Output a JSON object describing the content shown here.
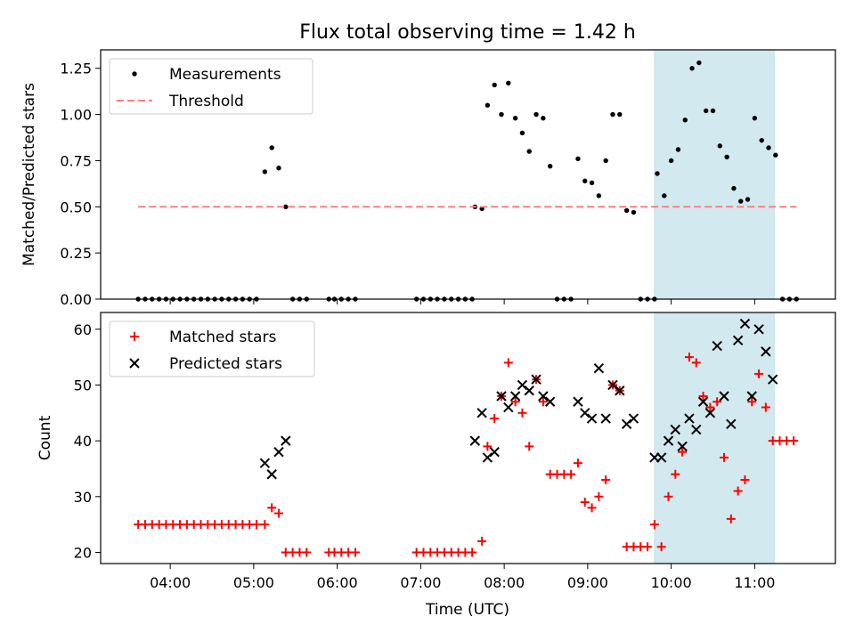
{
  "figure": {
    "title": "Flux total observing time = 1.42 h",
    "xlabel": "Time (UTC)",
    "x_ticks": [
      "04:00",
      "05:00",
      "06:00",
      "07:00",
      "08:00",
      "09:00",
      "10:00",
      "11:00"
    ],
    "highlight_span": {
      "start": "09:48",
      "end": "11:14",
      "color": "#d3e9f0"
    }
  },
  "chart_data": [
    {
      "type": "scatter",
      "ylabel": "Matched/Predicted stars",
      "ylim": [
        0,
        1.35
      ],
      "y_ticks": [
        "0.00",
        "0.25",
        "0.50",
        "0.75",
        "1.00",
        "1.25"
      ],
      "legend_position": "top-left",
      "series": [
        {
          "name": "Measurements",
          "marker": "dot",
          "color": "#000000",
          "points": [
            [
              "03:37",
              0
            ],
            [
              "03:42",
              0
            ],
            [
              "03:47",
              0
            ],
            [
              "03:52",
              0
            ],
            [
              "03:57",
              0
            ],
            [
              "04:02",
              0
            ],
            [
              "04:07",
              0
            ],
            [
              "04:12",
              0
            ],
            [
              "04:17",
              0
            ],
            [
              "04:22",
              0
            ],
            [
              "04:27",
              0
            ],
            [
              "04:32",
              0
            ],
            [
              "04:37",
              0
            ],
            [
              "04:42",
              0
            ],
            [
              "04:47",
              0
            ],
            [
              "04:52",
              0
            ],
            [
              "04:57",
              0
            ],
            [
              "05:02",
              0
            ],
            [
              "05:08",
              0.69
            ],
            [
              "05:13",
              0.82
            ],
            [
              "05:18",
              0.71
            ],
            [
              "05:23",
              0.5
            ],
            [
              "05:28",
              0
            ],
            [
              "05:33",
              0
            ],
            [
              "05:38",
              0
            ],
            [
              "05:54",
              0
            ],
            [
              "05:58",
              0
            ],
            [
              "06:03",
              0
            ],
            [
              "06:08",
              0
            ],
            [
              "06:13",
              0
            ],
            [
              "06:57",
              0
            ],
            [
              "07:02",
              0
            ],
            [
              "07:07",
              0
            ],
            [
              "07:12",
              0
            ],
            [
              "07:17",
              0
            ],
            [
              "07:22",
              0
            ],
            [
              "07:27",
              0
            ],
            [
              "07:32",
              0
            ],
            [
              "07:37",
              0
            ],
            [
              "07:39",
              0.5
            ],
            [
              "07:44",
              0.49
            ],
            [
              "07:48",
              1.05
            ],
            [
              "07:53",
              1.16
            ],
            [
              "07:58",
              1.0
            ],
            [
              "08:03",
              1.17
            ],
            [
              "08:08",
              0.98
            ],
            [
              "08:13",
              0.9
            ],
            [
              "08:18",
              0.8
            ],
            [
              "08:23",
              1.0
            ],
            [
              "08:28",
              0.98
            ],
            [
              "08:33",
              0.72
            ],
            [
              "08:38",
              0
            ],
            [
              "08:43",
              0
            ],
            [
              "08:48",
              0
            ],
            [
              "08:53",
              0.76
            ],
            [
              "08:58",
              0.64
            ],
            [
              "09:03",
              0.63
            ],
            [
              "09:08",
              0.56
            ],
            [
              "09:13",
              0.75
            ],
            [
              "09:18",
              1.0
            ],
            [
              "09:23",
              1.0
            ],
            [
              "09:28",
              0.48
            ],
            [
              "09:33",
              0.47
            ],
            [
              "09:38",
              0
            ],
            [
              "09:43",
              0
            ],
            [
              "09:48",
              0
            ],
            [
              "09:50",
              0.68
            ],
            [
              "09:55",
              0.56
            ],
            [
              "10:00",
              0.75
            ],
            [
              "10:05",
              0.81
            ],
            [
              "10:10",
              0.97
            ],
            [
              "10:15",
              1.25
            ],
            [
              "10:20",
              1.28
            ],
            [
              "10:25",
              1.02
            ],
            [
              "10:30",
              1.02
            ],
            [
              "10:35",
              0.83
            ],
            [
              "10:40",
              0.77
            ],
            [
              "10:45",
              0.6
            ],
            [
              "10:50",
              0.53
            ],
            [
              "10:55",
              0.54
            ],
            [
              "11:00",
              0.98
            ],
            [
              "11:05",
              0.86
            ],
            [
              "11:10",
              0.82
            ],
            [
              "11:15",
              0.78
            ],
            [
              "11:20",
              0
            ],
            [
              "11:25",
              0
            ],
            [
              "11:30",
              0
            ]
          ]
        },
        {
          "name": "Threshold",
          "marker": "dashed-line",
          "color": "#ff7f7f",
          "points": [
            [
              "03:37",
              0.5
            ],
            [
              "11:30",
              0.5
            ]
          ]
        }
      ]
    },
    {
      "type": "scatter",
      "ylabel": "Count",
      "ylim": [
        18,
        63
      ],
      "y_ticks": [
        "20",
        "30",
        "40",
        "50",
        "60"
      ],
      "legend_position": "top-left",
      "series": [
        {
          "name": "Matched stars",
          "marker": "plus",
          "color": "#ff0000",
          "points": [
            [
              "03:37",
              25
            ],
            [
              "03:42",
              25
            ],
            [
              "03:47",
              25
            ],
            [
              "03:52",
              25
            ],
            [
              "03:57",
              25
            ],
            [
              "04:02",
              25
            ],
            [
              "04:07",
              25
            ],
            [
              "04:12",
              25
            ],
            [
              "04:17",
              25
            ],
            [
              "04:22",
              25
            ],
            [
              "04:27",
              25
            ],
            [
              "04:32",
              25
            ],
            [
              "04:37",
              25
            ],
            [
              "04:42",
              25
            ],
            [
              "04:47",
              25
            ],
            [
              "04:52",
              25
            ],
            [
              "04:57",
              25
            ],
            [
              "05:02",
              25
            ],
            [
              "05:08",
              25
            ],
            [
              "05:13",
              28
            ],
            [
              "05:18",
              27
            ],
            [
              "05:23",
              20
            ],
            [
              "05:28",
              20
            ],
            [
              "05:33",
              20
            ],
            [
              "05:38",
              20
            ],
            [
              "05:54",
              20
            ],
            [
              "05:58",
              20
            ],
            [
              "06:03",
              20
            ],
            [
              "06:08",
              20
            ],
            [
              "06:13",
              20
            ],
            [
              "06:57",
              20
            ],
            [
              "07:02",
              20
            ],
            [
              "07:07",
              20
            ],
            [
              "07:12",
              20
            ],
            [
              "07:17",
              20
            ],
            [
              "07:22",
              20
            ],
            [
              "07:27",
              20
            ],
            [
              "07:32",
              20
            ],
            [
              "07:37",
              20
            ],
            [
              "07:44",
              22
            ],
            [
              "07:48",
              39
            ],
            [
              "07:53",
              44
            ],
            [
              "07:58",
              48
            ],
            [
              "08:03",
              54
            ],
            [
              "08:08",
              47
            ],
            [
              "08:13",
              45
            ],
            [
              "08:18",
              39
            ],
            [
              "08:23",
              51
            ],
            [
              "08:28",
              47
            ],
            [
              "08:33",
              34
            ],
            [
              "08:38",
              34
            ],
            [
              "08:43",
              34
            ],
            [
              "08:48",
              34
            ],
            [
              "08:53",
              36
            ],
            [
              "08:58",
              29
            ],
            [
              "09:03",
              28
            ],
            [
              "09:08",
              30
            ],
            [
              "09:13",
              33
            ],
            [
              "09:18",
              50
            ],
            [
              "09:23",
              49
            ],
            [
              "09:28",
              21
            ],
            [
              "09:33",
              21
            ],
            [
              "09:38",
              21
            ],
            [
              "09:43",
              21
            ],
            [
              "09:48",
              25
            ],
            [
              "09:53",
              21
            ],
            [
              "09:58",
              30
            ],
            [
              "10:03",
              34
            ],
            [
              "10:08",
              38
            ],
            [
              "10:13",
              55
            ],
            [
              "10:18",
              54
            ],
            [
              "10:23",
              48
            ],
            [
              "10:28",
              46
            ],
            [
              "10:33",
              47
            ],
            [
              "10:38",
              37
            ],
            [
              "10:43",
              26
            ],
            [
              "10:48",
              31
            ],
            [
              "10:53",
              33
            ],
            [
              "10:58",
              47
            ],
            [
              "11:03",
              52
            ],
            [
              "11:08",
              46
            ],
            [
              "11:13",
              40
            ],
            [
              "11:18",
              40
            ],
            [
              "11:23",
              40
            ],
            [
              "11:28",
              40
            ]
          ]
        },
        {
          "name": "Predicted stars",
          "marker": "x",
          "color": "#000000",
          "points": [
            [
              "05:08",
              36
            ],
            [
              "05:13",
              34
            ],
            [
              "05:18",
              38
            ],
            [
              "05:23",
              40
            ],
            [
              "07:39",
              40
            ],
            [
              "07:44",
              45
            ],
            [
              "07:48",
              37
            ],
            [
              "07:53",
              38
            ],
            [
              "07:58",
              48
            ],
            [
              "08:03",
              46
            ],
            [
              "08:08",
              48
            ],
            [
              "08:13",
              50
            ],
            [
              "08:18",
              49
            ],
            [
              "08:23",
              51
            ],
            [
              "08:28",
              48
            ],
            [
              "08:33",
              47
            ],
            [
              "08:53",
              47
            ],
            [
              "08:58",
              45
            ],
            [
              "09:03",
              44
            ],
            [
              "09:08",
              53
            ],
            [
              "09:13",
              44
            ],
            [
              "09:18",
              50
            ],
            [
              "09:23",
              49
            ],
            [
              "09:28",
              43
            ],
            [
              "09:33",
              44
            ],
            [
              "09:48",
              37
            ],
            [
              "09:53",
              37
            ],
            [
              "09:58",
              40
            ],
            [
              "10:03",
              42
            ],
            [
              "10:08",
              39
            ],
            [
              "10:13",
              44
            ],
            [
              "10:18",
              42
            ],
            [
              "10:23",
              47
            ],
            [
              "10:28",
              45
            ],
            [
              "10:33",
              57
            ],
            [
              "10:38",
              48
            ],
            [
              "10:43",
              43
            ],
            [
              "10:48",
              58
            ],
            [
              "10:53",
              61
            ],
            [
              "10:58",
              48
            ],
            [
              "11:03",
              60
            ],
            [
              "11:08",
              56
            ],
            [
              "11:13",
              51
            ]
          ]
        }
      ]
    }
  ]
}
